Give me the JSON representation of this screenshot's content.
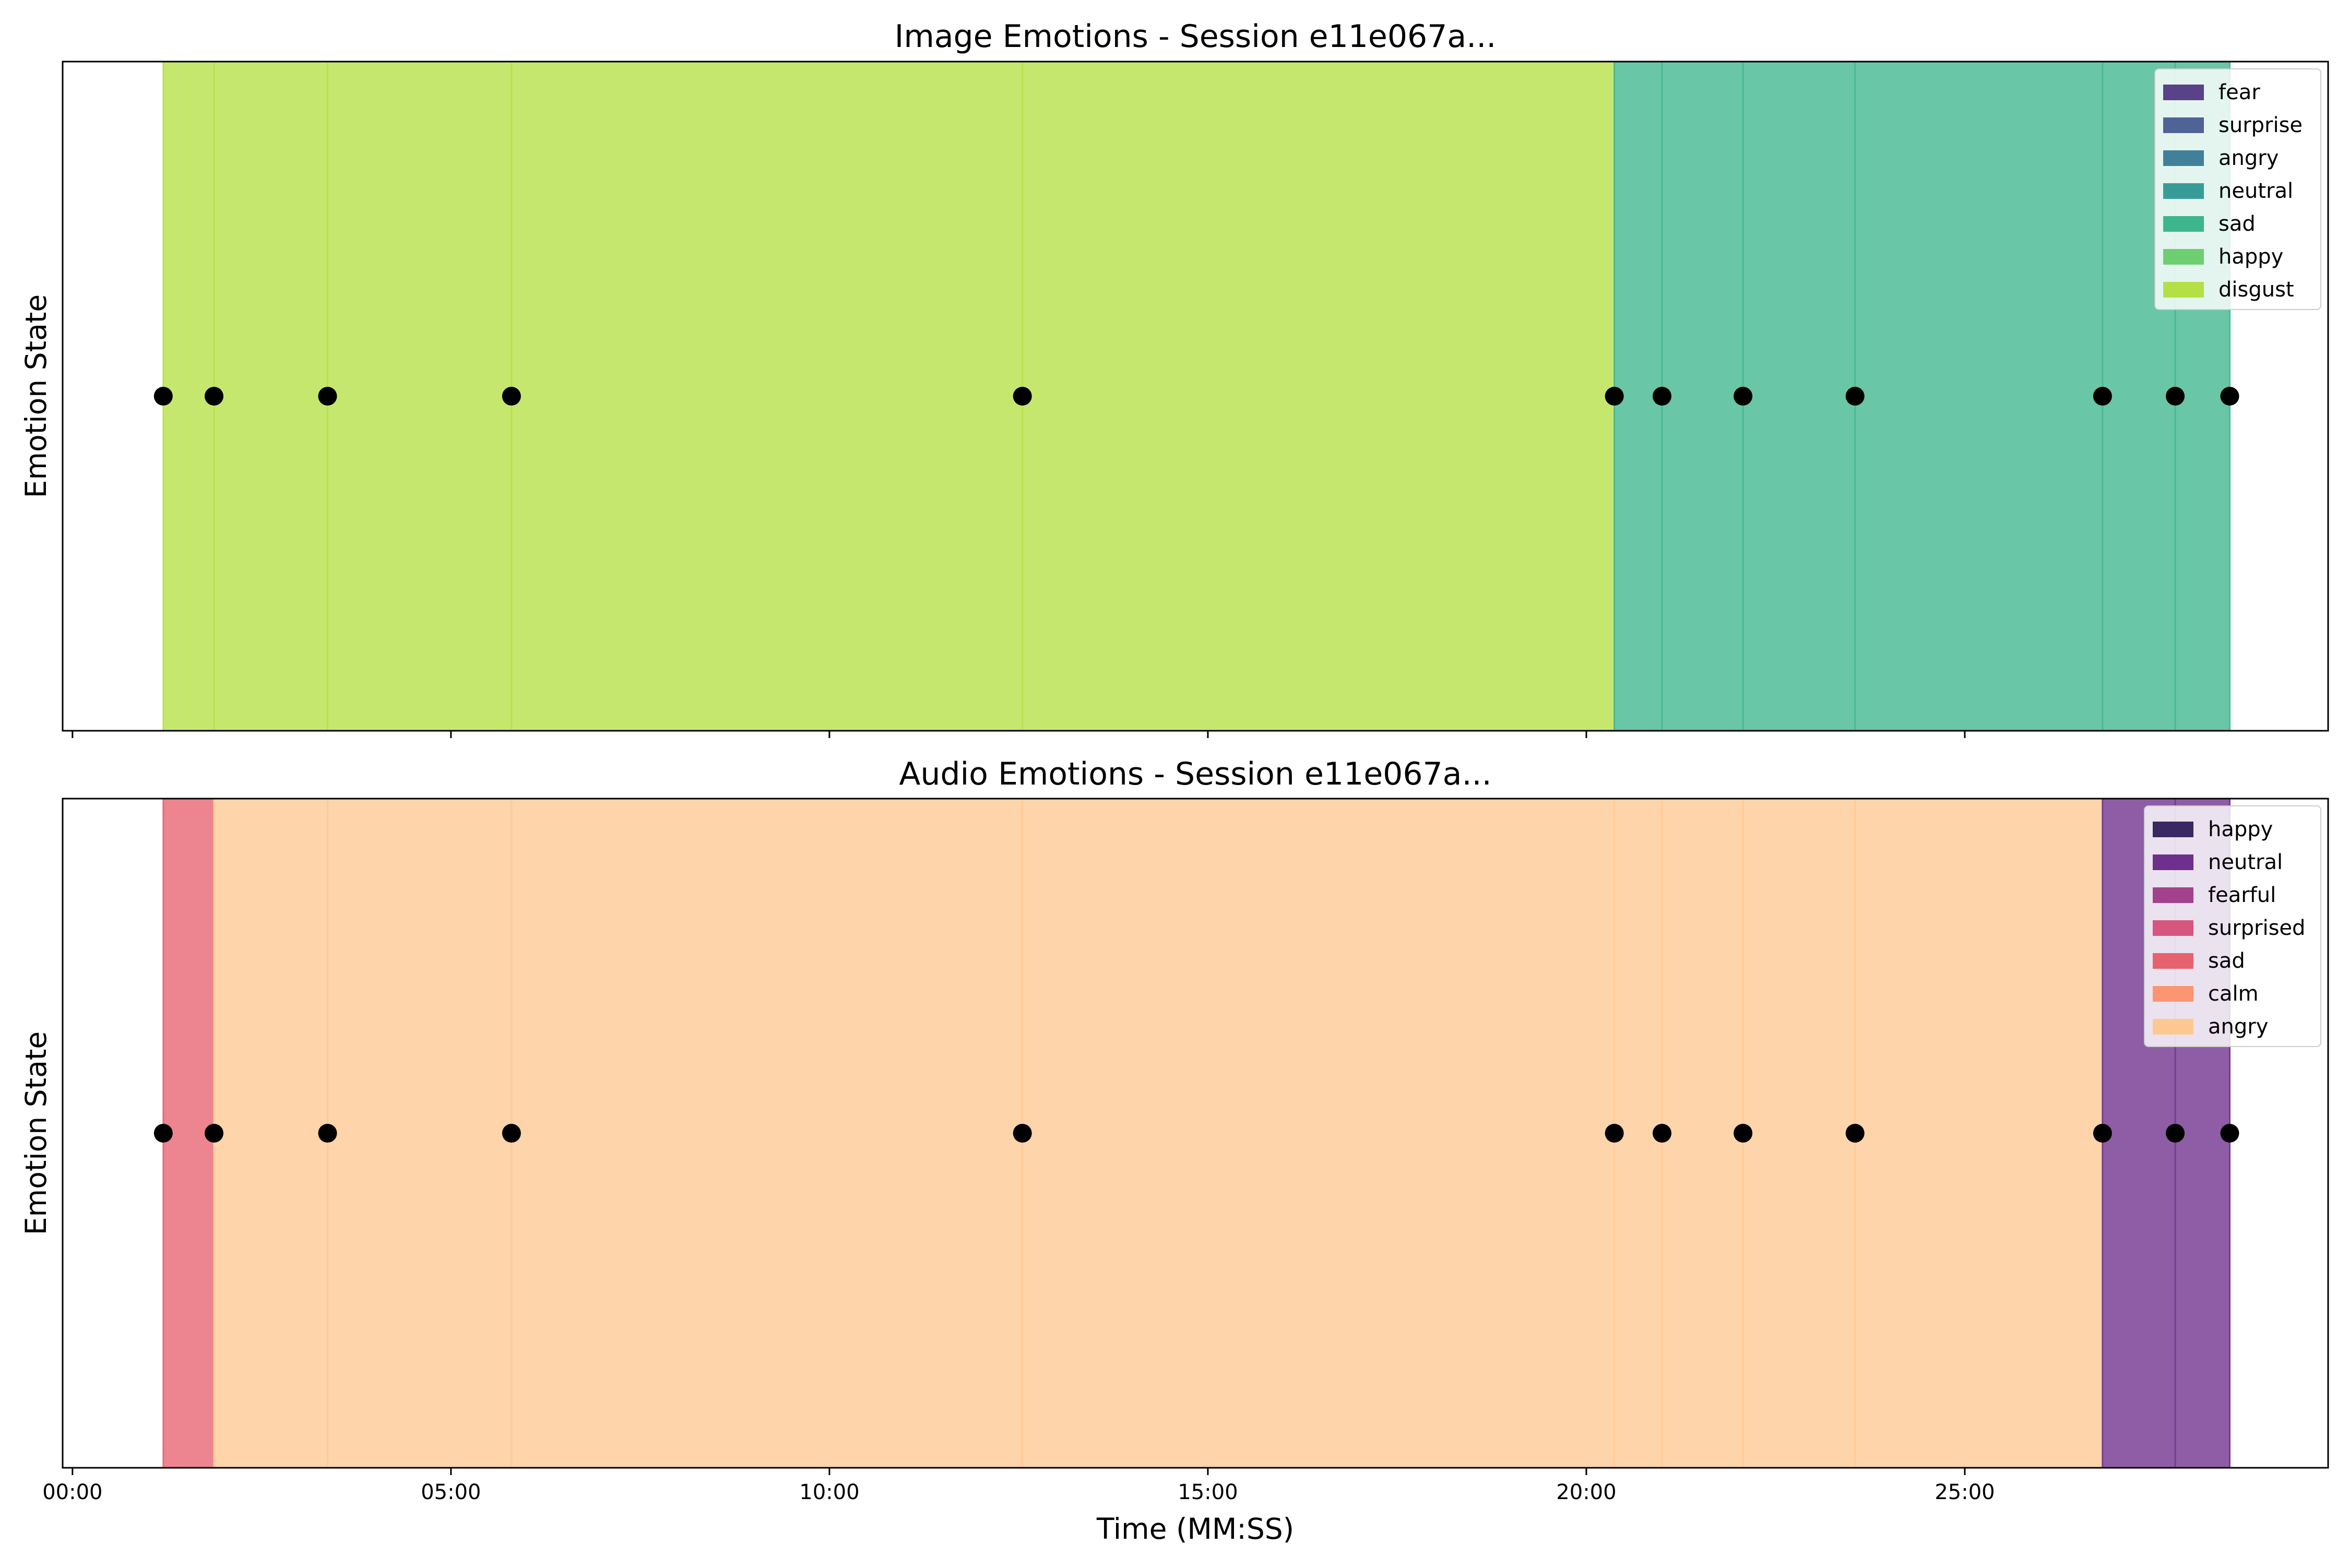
{
  "x_tick_labels": [
    "00:00",
    "05:00",
    "10:00",
    "15:00",
    "20:00",
    "25:00"
  ],
  "xlabel": "Time (MM:SS)",
  "chart_data": [
    {
      "type": "area",
      "title": "Image Emotions - Session e11e067a...",
      "ylabel": "Emotion State",
      "x_unit": "minutes",
      "xlim": [
        -0.13,
        29.8
      ],
      "x_ticks": [
        0,
        5,
        10,
        15,
        20,
        25
      ],
      "grid": false,
      "legend_position": "top-right",
      "legend": [
        {
          "label": "fear",
          "color": "#472d7b"
        },
        {
          "label": "surprise",
          "color": "#3b528b"
        },
        {
          "label": "angry",
          "color": "#2c728e"
        },
        {
          "label": "neutral",
          "color": "#21918c"
        },
        {
          "label": "sad",
          "color": "#28ae80"
        },
        {
          "label": "happy",
          "color": "#5ec962"
        },
        {
          "label": "disgust",
          "color": "#addc30"
        }
      ],
      "event_times": [
        1.2,
        1.87,
        3.37,
        5.8,
        12.55,
        20.37,
        21.0,
        22.07,
        23.55,
        26.82,
        27.78,
        28.5
      ],
      "segments": [
        {
          "start": 1.2,
          "end": 20.37,
          "emotion": "disgust",
          "color": "#addc30"
        },
        {
          "start": 20.37,
          "end": 28.5,
          "emotion": "sad",
          "color": "#28ae80"
        }
      ]
    },
    {
      "type": "area",
      "title": "Audio Emotions - Session e11e067a...",
      "ylabel": "Emotion State",
      "x_unit": "minutes",
      "xlim": [
        -0.13,
        29.8
      ],
      "x_ticks": [
        0,
        5,
        10,
        15,
        20,
        25
      ],
      "grid": false,
      "legend_position": "top-right",
      "legend": [
        {
          "label": "happy",
          "color": "#221150"
        },
        {
          "label": "neutral",
          "color": "#5f187f"
        },
        {
          "label": "fearful",
          "color": "#982d80"
        },
        {
          "label": "surprised",
          "color": "#d3436e"
        },
        {
          "label": "sad",
          "color": "#e4505f"
        },
        {
          "label": "calm",
          "color": "#fc8961"
        },
        {
          "label": "angry",
          "color": "#fec287"
        }
      ],
      "event_times": [
        1.2,
        1.87,
        3.37,
        5.8,
        12.55,
        20.37,
        21.0,
        22.07,
        23.55,
        26.82,
        27.78,
        28.5
      ],
      "segments": [
        {
          "start": 1.2,
          "end": 1.87,
          "emotion": "sad",
          "color": "#e4505f"
        },
        {
          "start": 1.87,
          "end": 26.82,
          "emotion": "angry",
          "color": "#fec287"
        },
        {
          "start": 26.82,
          "end": 28.5,
          "emotion": "neutral",
          "color": "#5f187f"
        }
      ]
    }
  ]
}
